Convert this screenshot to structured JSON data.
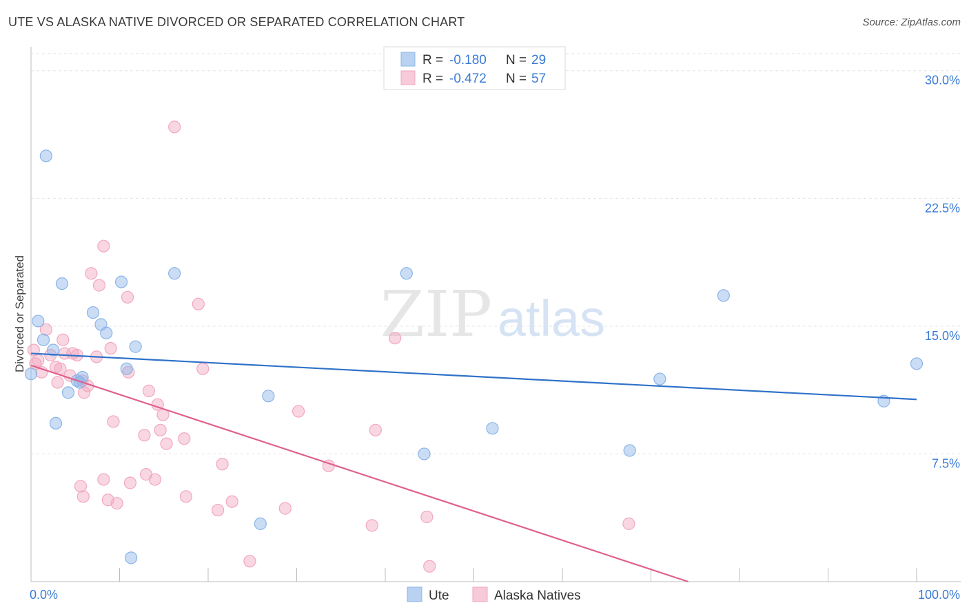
{
  "title": "UTE VS ALASKA NATIVE DIVORCED OR SEPARATED CORRELATION CHART",
  "source": "Source: ZipAtlas.com",
  "watermark": {
    "zip": "ZIP",
    "atlas": "atlas"
  },
  "legend_box": [
    {
      "r_label": "R =",
      "r_value": "-0.180",
      "n_label": "N =",
      "n_value": "29",
      "color": "#8ab4e8"
    },
    {
      "r_label": "R =",
      "r_value": "-0.472",
      "n_label": "N =",
      "n_value": "57",
      "color": "#f2a7bf"
    }
  ],
  "chart_data": {
    "type": "scatter",
    "title": "UTE VS ALASKA NATIVE DIVORCED OR SEPARATED CORRELATION CHART",
    "xlabel": "",
    "ylabel": "Divorced or Separated",
    "xlim": [
      0,
      100
    ],
    "ylim": [
      0,
      31
    ],
    "x_tick_labels": [
      "0.0%",
      "100.0%"
    ],
    "y_ticks": [
      7.5,
      15.0,
      22.5,
      30.0
    ],
    "y_tick_labels": [
      "7.5%",
      "15.0%",
      "22.5%",
      "30.0%"
    ],
    "grid": true,
    "legend_position": "bottom-center",
    "series": [
      {
        "name": "Ute",
        "color": "#8ab4e8",
        "line_color": "#2f72c9",
        "trend": {
          "x": [
            0,
            100
          ],
          "y": [
            13.4,
            10.7
          ]
        },
        "points": [
          {
            "x": 0.0,
            "y": 12.2
          },
          {
            "x": 1.7,
            "y": 25.0
          },
          {
            "x": 0.8,
            "y": 15.3
          },
          {
            "x": 1.4,
            "y": 14.2
          },
          {
            "x": 2.5,
            "y": 13.6
          },
          {
            "x": 3.5,
            "y": 17.5
          },
          {
            "x": 2.8,
            "y": 9.3
          },
          {
            "x": 4.2,
            "y": 11.1
          },
          {
            "x": 5.2,
            "y": 11.8
          },
          {
            "x": 5.5,
            "y": 11.7
          },
          {
            "x": 5.8,
            "y": 12.0
          },
          {
            "x": 7.0,
            "y": 15.8
          },
          {
            "x": 7.9,
            "y": 15.1
          },
          {
            "x": 8.5,
            "y": 14.6
          },
          {
            "x": 10.2,
            "y": 17.6
          },
          {
            "x": 10.8,
            "y": 12.5
          },
          {
            "x": 11.8,
            "y": 13.8
          },
          {
            "x": 11.3,
            "y": 1.4
          },
          {
            "x": 16.2,
            "y": 18.1
          },
          {
            "x": 25.9,
            "y": 3.4
          },
          {
            "x": 26.8,
            "y": 10.9
          },
          {
            "x": 42.4,
            "y": 18.1
          },
          {
            "x": 44.4,
            "y": 7.5
          },
          {
            "x": 52.1,
            "y": 9.0
          },
          {
            "x": 67.6,
            "y": 7.7
          },
          {
            "x": 71.0,
            "y": 11.9
          },
          {
            "x": 78.2,
            "y": 16.8
          },
          {
            "x": 96.3,
            "y": 10.6
          },
          {
            "x": 100.0,
            "y": 12.8
          }
        ]
      },
      {
        "name": "Alaska Natives",
        "color": "#f2a7bf",
        "line_color": "#e0608c",
        "trend": {
          "x": [
            0,
            74.2
          ],
          "y": [
            12.7,
            0.0
          ]
        },
        "points": [
          {
            "x": 0.3,
            "y": 13.6
          },
          {
            "x": 0.5,
            "y": 12.8
          },
          {
            "x": 0.8,
            "y": 13.0
          },
          {
            "x": 1.2,
            "y": 12.3
          },
          {
            "x": 1.7,
            "y": 14.8
          },
          {
            "x": 2.2,
            "y": 13.3
          },
          {
            "x": 2.8,
            "y": 12.6
          },
          {
            "x": 3.0,
            "y": 11.7
          },
          {
            "x": 3.3,
            "y": 12.5
          },
          {
            "x": 3.6,
            "y": 14.2
          },
          {
            "x": 3.8,
            "y": 13.4
          },
          {
            "x": 4.4,
            "y": 12.1
          },
          {
            "x": 4.7,
            "y": 13.4
          },
          {
            "x": 5.2,
            "y": 13.3
          },
          {
            "x": 5.6,
            "y": 5.6
          },
          {
            "x": 5.8,
            "y": 11.8
          },
          {
            "x": 5.9,
            "y": 5.0
          },
          {
            "x": 6.0,
            "y": 11.1
          },
          {
            "x": 6.4,
            "y": 11.5
          },
          {
            "x": 6.8,
            "y": 18.1
          },
          {
            "x": 7.4,
            "y": 13.2
          },
          {
            "x": 7.7,
            "y": 17.4
          },
          {
            "x": 8.2,
            "y": 19.7
          },
          {
            "x": 8.2,
            "y": 6.0
          },
          {
            "x": 8.7,
            "y": 4.8
          },
          {
            "x": 9.0,
            "y": 13.7
          },
          {
            "x": 9.3,
            "y": 9.4
          },
          {
            "x": 9.7,
            "y": 4.6
          },
          {
            "x": 10.9,
            "y": 16.7
          },
          {
            "x": 11.0,
            "y": 12.3
          },
          {
            "x": 11.2,
            "y": 5.8
          },
          {
            "x": 12.8,
            "y": 8.6
          },
          {
            "x": 13.0,
            "y": 6.3
          },
          {
            "x": 13.3,
            "y": 11.2
          },
          {
            "x": 14.0,
            "y": 6.0
          },
          {
            "x": 14.3,
            "y": 10.4
          },
          {
            "x": 14.6,
            "y": 8.9
          },
          {
            "x": 14.9,
            "y": 9.8
          },
          {
            "x": 15.3,
            "y": 8.1
          },
          {
            "x": 16.2,
            "y": 26.7
          },
          {
            "x": 17.3,
            "y": 8.4
          },
          {
            "x": 17.5,
            "y": 5.0
          },
          {
            "x": 18.9,
            "y": 16.3
          },
          {
            "x": 19.4,
            "y": 12.5
          },
          {
            "x": 21.1,
            "y": 4.2
          },
          {
            "x": 21.6,
            "y": 6.9
          },
          {
            "x": 22.7,
            "y": 4.7
          },
          {
            "x": 24.7,
            "y": 1.2
          },
          {
            "x": 28.7,
            "y": 4.3
          },
          {
            "x": 30.2,
            "y": 10.0
          },
          {
            "x": 33.6,
            "y": 6.8
          },
          {
            "x": 38.5,
            "y": 3.3
          },
          {
            "x": 38.9,
            "y": 8.9
          },
          {
            "x": 41.1,
            "y": 14.3
          },
          {
            "x": 44.7,
            "y": 3.8
          },
          {
            "x": 45.0,
            "y": 0.9
          },
          {
            "x": 67.5,
            "y": 3.4
          }
        ]
      }
    ]
  }
}
